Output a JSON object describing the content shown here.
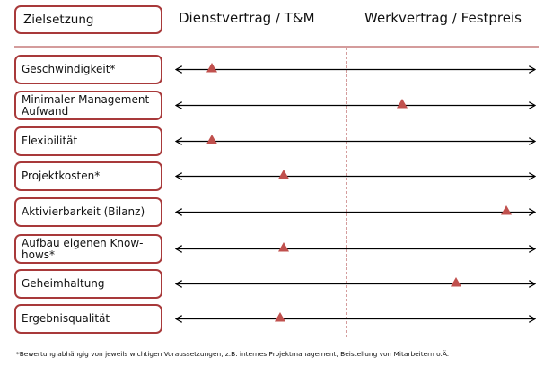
{
  "header": {
    "goal_label": "Zielsetzung",
    "left_title": "Dienstvertrag / T&M",
    "right_title": "Werkvertrag / Festpreis"
  },
  "rows": [
    {
      "label": "Geschwindigkeit*",
      "value": 0.1
    },
    {
      "label": "Minimaler Management-Aufwand",
      "value": 0.63
    },
    {
      "label": "Flexibilität",
      "value": 0.1
    },
    {
      "label": "Projektkosten*",
      "value": 0.3
    },
    {
      "label": "Aktivierbarkeit (Bilanz)",
      "value": 0.92
    },
    {
      "label": "Aufbau eigenen Know-hows*",
      "value": 0.3
    },
    {
      "label": "Geheimhaltung",
      "value": 0.78
    },
    {
      "label": "Ergebnisqualität",
      "value": 0.29
    }
  ],
  "footnote": "*Bewertung abhängig von jeweils wichtigen Voraussetzungen, z.B. internes Projektmanagement, Beistellung von Mitarbeitern o.Ä.",
  "colors": {
    "accent": "#a8393a",
    "marker": "#c0504d",
    "line": "#000000"
  }
}
